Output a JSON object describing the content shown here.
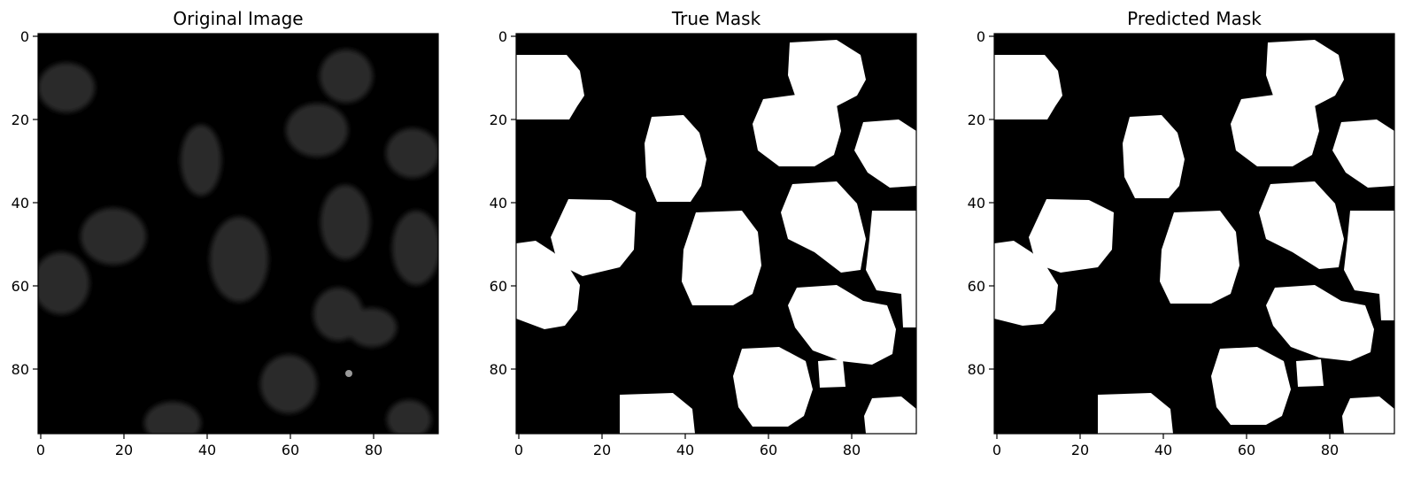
{
  "panels": [
    {
      "title": "Original Image",
      "kind": "grayscale-image",
      "xticks": [
        "0",
        "20",
        "40",
        "60",
        "80"
      ],
      "yticks": [
        "0",
        "20",
        "40",
        "60",
        "80"
      ]
    },
    {
      "title": "True Mask",
      "kind": "binary-mask",
      "xticks": [
        "0",
        "20",
        "40",
        "60",
        "80"
      ],
      "yticks": [
        "0",
        "20",
        "40",
        "60",
        "80"
      ]
    },
    {
      "title": "Predicted Mask",
      "kind": "binary-mask",
      "xticks": [
        "0",
        "20",
        "40",
        "60",
        "80"
      ],
      "yticks": [
        "0",
        "20",
        "40",
        "60",
        "80"
      ]
    }
  ],
  "tick_values": [
    0,
    20,
    40,
    60,
    80
  ],
  "image_size": [
    96,
    96
  ],
  "colors": {
    "background": "#ffffff",
    "image_black": "#000000",
    "mask_white": "#ffffff",
    "nucleus_gray": "#2a2a2a"
  }
}
